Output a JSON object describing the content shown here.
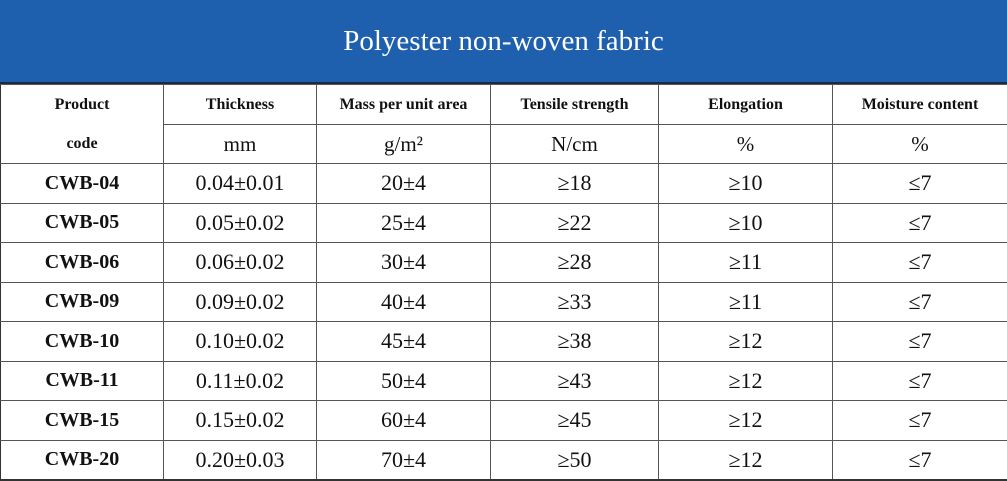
{
  "title": "Polyester non-woven fabric",
  "header": [
    [
      "Product",
      "Thickness",
      "Mass per unit area",
      "Tensile strength",
      "Elongation",
      "Moisture content"
    ],
    [
      "code",
      "mm",
      "g/m²",
      "N/cm",
      "%",
      "%"
    ]
  ],
  "rows": [
    [
      "CWB-04",
      "0.04±0.01",
      "20±4",
      "≥18",
      "≥10",
      "≤7"
    ],
    [
      "CWB-05",
      "0.05±0.02",
      "25±4",
      "≥22",
      "≥10",
      "≤7"
    ],
    [
      "CWB-06",
      "0.06±0.02",
      "30±4",
      "≥28",
      "≥11",
      "≤7"
    ],
    [
      "CWB-09",
      "0.09±0.02",
      "40±4",
      "≥33",
      "≥11",
      "≤7"
    ],
    [
      "CWB-10",
      "0.10±0.02",
      "45±4",
      "≥38",
      "≥12",
      "≤7"
    ],
    [
      "CWB-11",
      "0.11±0.02",
      "50±4",
      "≥43",
      "≥12",
      "≤7"
    ],
    [
      "CWB-15",
      "0.15±0.02",
      "60±4",
      "≥45",
      "≥12",
      "≤7"
    ],
    [
      "CWB-20",
      "0.20±0.03",
      "70±4",
      "≥50",
      "≥12",
      "≤7"
    ]
  ]
}
